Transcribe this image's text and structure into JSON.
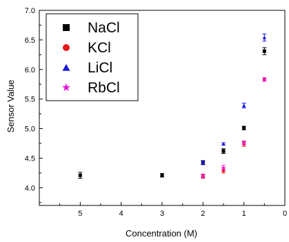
{
  "chart_data": {
    "type": "scatter",
    "title": "",
    "xlabel": "Concentration (M)",
    "ylabel": "Sensor Value",
    "xlim": [
      6,
      0
    ],
    "ylim": [
      3.7,
      7.0
    ],
    "x_reversed": true,
    "x_ticks": [
      "5",
      "4",
      "3",
      "2",
      "1",
      "0"
    ],
    "y_ticks": [
      "4.0",
      "4.5",
      "5.0",
      "5.5",
      "6.0",
      "6.5",
      "7.0"
    ],
    "grid": false,
    "legend_position": "top-left",
    "series": [
      {
        "name": "NaCl",
        "marker": "square",
        "color": "#000000",
        "points": [
          {
            "x": 5,
            "y": 4.21,
            "err": 0.05
          },
          {
            "x": 3,
            "y": 4.21,
            "err": 0.03
          },
          {
            "x": 2,
            "y": 4.42,
            "err": 0.03
          },
          {
            "x": 1.5,
            "y": 4.62,
            "err": 0.04
          },
          {
            "x": 1,
            "y": 5.01,
            "err": 0.03
          },
          {
            "x": 0.5,
            "y": 6.31,
            "err": 0.06
          }
        ]
      },
      {
        "name": "KCl",
        "marker": "circle",
        "color": "#e8191b",
        "points": [
          {
            "x": 2,
            "y": 4.19,
            "err": 0.03
          },
          {
            "x": 1.5,
            "y": 4.29,
            "err": 0.04
          },
          {
            "x": 1,
            "y": 4.74,
            "err": 0.04
          },
          {
            "x": 0.5,
            "y": 5.83,
            "err": 0.03
          }
        ]
      },
      {
        "name": "LiCl",
        "marker": "triangle",
        "color": "#1a1adb",
        "points": [
          {
            "x": 2,
            "y": 4.43,
            "err": 0.03
          },
          {
            "x": 1.5,
            "y": 4.74,
            "err": 0.02
          },
          {
            "x": 1,
            "y": 5.39,
            "err": 0.04
          },
          {
            "x": 0.5,
            "y": 6.54,
            "err": 0.06
          }
        ]
      },
      {
        "name": "RbCl",
        "marker": "star",
        "color": "#e81adb",
        "points": [
          {
            "x": 2,
            "y": 4.2,
            "err": 0.03
          },
          {
            "x": 1.5,
            "y": 4.34,
            "err": 0.04
          },
          {
            "x": 1,
            "y": 4.76,
            "err": 0.03
          },
          {
            "x": 0.5,
            "y": 5.83,
            "err": 0.03
          }
        ]
      }
    ]
  }
}
